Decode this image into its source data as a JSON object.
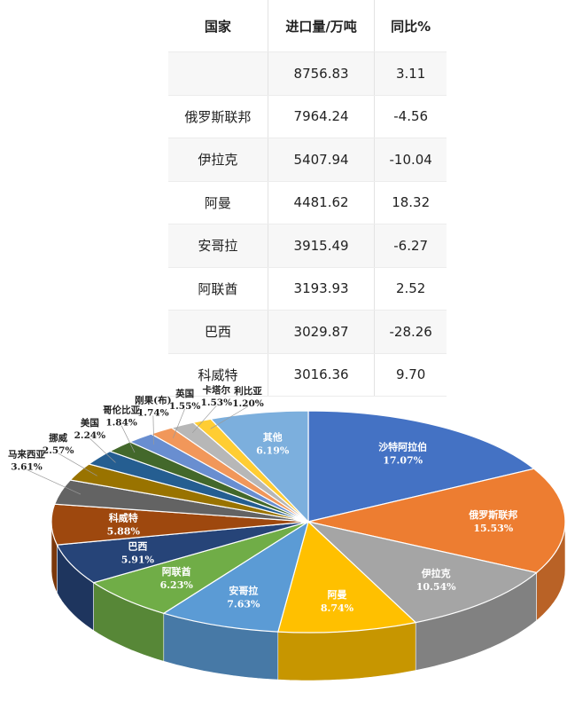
{
  "table": {
    "headers": [
      "国家",
      "进口量/万吨",
      "同比%"
    ],
    "rows": [
      [
        "",
        "8756.83",
        "3.11"
      ],
      [
        "俄罗斯联邦",
        "7964.24",
        "-4.56"
      ],
      [
        "伊拉克",
        "5407.94",
        "-10.04"
      ],
      [
        "阿曼",
        "4481.62",
        "18.32"
      ],
      [
        "安哥拉",
        "3915.49",
        "-6.27"
      ],
      [
        "阿联酋",
        "3193.93",
        "2.52"
      ],
      [
        "巴西",
        "3029.87",
        "-28.26"
      ],
      [
        "科威特",
        "3016.36",
        "9.70"
      ]
    ]
  },
  "chart_data": {
    "type": "pie",
    "slices": [
      {
        "name": "沙特阿拉伯",
        "value": 17.07,
        "label": "17.07%",
        "color": "#4472C4"
      },
      {
        "name": "俄罗斯联邦",
        "value": 15.53,
        "label": "15.53%",
        "color": "#ED7D31"
      },
      {
        "name": "伊拉克",
        "value": 10.54,
        "label": "10.54%",
        "color": "#A5A5A5"
      },
      {
        "name": "阿曼",
        "value": 8.74,
        "label": "8.74%",
        "color": "#FFC000"
      },
      {
        "name": "安哥拉",
        "value": 7.63,
        "label": "7.63%",
        "color": "#5B9BD5"
      },
      {
        "name": "阿联酋",
        "value": 6.23,
        "label": "6.23%",
        "color": "#70AD47"
      },
      {
        "name": "巴西",
        "value": 5.91,
        "label": "5.91%",
        "color": "#264478"
      },
      {
        "name": "科威特",
        "value": 5.88,
        "label": "5.88%",
        "color": "#9E480E"
      },
      {
        "name": "马来西亚",
        "value": 3.61,
        "label": "3.61%",
        "color": "#636363"
      },
      {
        "name": "挪威",
        "value": 2.57,
        "label": "2.57%",
        "color": "#997300"
      },
      {
        "name": "美国",
        "value": 2.24,
        "label": "2.24%",
        "color": "#255E91"
      },
      {
        "name": "哥伦比亚",
        "value": 1.84,
        "label": "1.84%",
        "color": "#43682B"
      },
      {
        "name": "刚果(布)",
        "value": 1.74,
        "label": "1.74%",
        "color": "#698ED0"
      },
      {
        "name": "英国",
        "value": 1.55,
        "label": "1.55%",
        "color": "#F1975A"
      },
      {
        "name": "卡塔尔",
        "value": 1.53,
        "label": "1.53%",
        "color": "#B7B7B7"
      },
      {
        "name": "利比亚",
        "value": 1.2,
        "label": "1.20%",
        "color": "#FFCD33"
      },
      {
        "name": "其他",
        "value": 6.19,
        "label": "6.19%",
        "color": "#7CAFDD"
      }
    ]
  }
}
